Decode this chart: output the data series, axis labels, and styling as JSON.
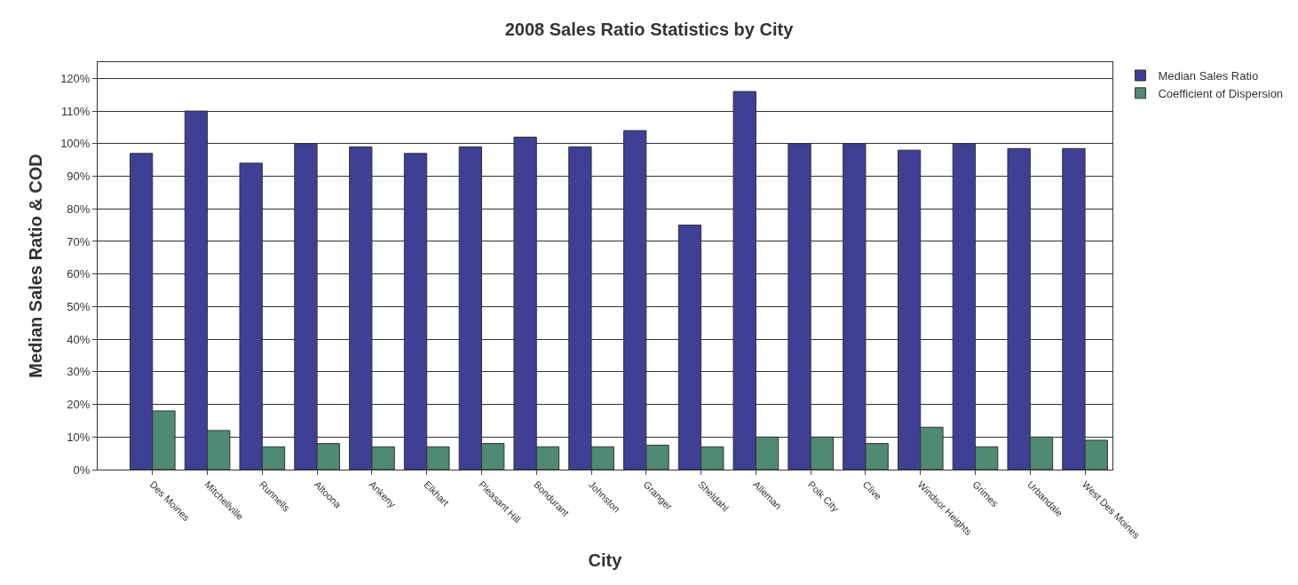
{
  "chart_data": {
    "type": "bar",
    "title": "2008 Sales Ratio Statistics by City",
    "xlabel": "City",
    "ylabel": "Median Sales Ratio & COD",
    "categories": [
      "Des Moines",
      "Mitchellville",
      "Runnells",
      "Altoona",
      "Ankeny",
      "Elkhart",
      "Pleasant Hill",
      "Bondurant",
      "Johnston",
      "Granger",
      "Sheldahl",
      "Alleman",
      "Polk City",
      "Clive",
      "Windsor Heights",
      "Grimes",
      "Urbandale",
      "West Des Moines"
    ],
    "series": [
      {
        "name": "Median Sales Ratio",
        "color": "#3f3f96",
        "values": [
          97,
          110,
          94,
          100,
          99,
          97,
          99,
          102,
          99,
          104,
          75,
          116,
          100,
          100,
          98,
          100,
          98.5,
          98.5
        ]
      },
      {
        "name": "Coefficient of Dispersion",
        "color": "#4f8a72",
        "values": [
          18,
          12,
          7,
          8,
          7,
          7,
          8,
          7,
          7,
          7.5,
          7,
          10,
          10,
          8,
          13,
          7,
          10,
          9
        ]
      }
    ],
    "ylim": [
      0,
      125
    ],
    "yticks": [
      {
        "value": 0,
        "label": "0%"
      },
      {
        "value": 10,
        "label": "10%"
      },
      {
        "value": 20,
        "label": "20%"
      },
      {
        "value": 30,
        "label": "30%"
      },
      {
        "value": 40,
        "label": "40%"
      },
      {
        "value": 50,
        "label": "50%"
      },
      {
        "value": 60,
        "label": "60%"
      },
      {
        "value": 70,
        "label": "70%"
      },
      {
        "value": 80,
        "label": "80%"
      },
      {
        "value": 90,
        "label": "90%"
      },
      {
        "value": 100,
        "label": "100%"
      },
      {
        "value": 110,
        "label": "110%"
      },
      {
        "value": 120,
        "label": "120%"
      }
    ],
    "grid": "y",
    "legend": "top right"
  }
}
